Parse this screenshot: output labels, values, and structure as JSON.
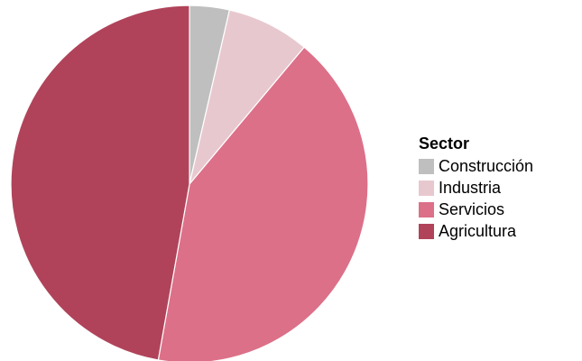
{
  "chart_data": {
    "type": "pie",
    "title": "",
    "legend": {
      "title": "Sector",
      "position": "right"
    },
    "slices": [
      {
        "name": "Construcción",
        "value": 3.6,
        "color": "#bfbfbf"
      },
      {
        "name": "Industria",
        "value": 7.5,
        "color": "#e8c8cf"
      },
      {
        "name": "Servicios",
        "value": 41.7,
        "color": "#dc7088"
      },
      {
        "name": "Agricultura",
        "value": 47.2,
        "color": "#b0435a"
      }
    ],
    "slice_border_color": "#ffffff",
    "start_angle": "12 o'clock",
    "direction": "clockwise"
  }
}
